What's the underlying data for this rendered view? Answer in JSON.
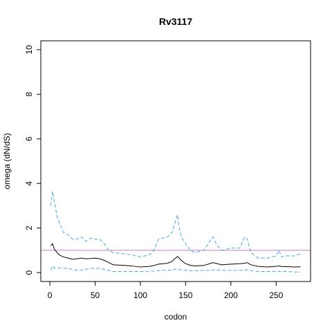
{
  "chart_data": {
    "type": "line",
    "title": "Rv3117",
    "xlabel": "codon",
    "ylabel": "omega (dN/dS)",
    "x": [
      1,
      3,
      5,
      8,
      10,
      15,
      20,
      25,
      30,
      35,
      40,
      45,
      50,
      55,
      60,
      65,
      70,
      80,
      90,
      100,
      110,
      115,
      120,
      125,
      130,
      135,
      138,
      141,
      143,
      145,
      150,
      155,
      160,
      170,
      175,
      180,
      185,
      190,
      200,
      210,
      215,
      218,
      222,
      230,
      240,
      250,
      253,
      256,
      260,
      270,
      277
    ],
    "series": [
      {
        "color": "#000000",
        "dash": false,
        "values": [
          1.2,
          1.3,
          1.05,
          0.9,
          0.8,
          0.7,
          0.65,
          0.6,
          0.62,
          0.65,
          0.62,
          0.63,
          0.65,
          0.62,
          0.55,
          0.45,
          0.35,
          0.33,
          0.3,
          0.25,
          0.28,
          0.32,
          0.38,
          0.4,
          0.42,
          0.5,
          0.62,
          0.72,
          0.65,
          0.55,
          0.4,
          0.33,
          0.3,
          0.32,
          0.38,
          0.45,
          0.4,
          0.35,
          0.38,
          0.4,
          0.42,
          0.45,
          0.35,
          0.28,
          0.25,
          0.28,
          0.3,
          0.27,
          0.27,
          0.25,
          0.26
        ]
      },
      {
        "color": "#3fa9dc",
        "dash": true,
        "values": [
          3.0,
          3.65,
          3.2,
          2.5,
          2.3,
          1.8,
          1.7,
          1.5,
          1.5,
          1.6,
          1.4,
          1.55,
          1.5,
          1.5,
          1.3,
          1.0,
          0.9,
          0.85,
          0.8,
          0.7,
          0.8,
          1.0,
          1.5,
          1.55,
          1.6,
          1.8,
          2.2,
          2.6,
          2.0,
          1.6,
          1.3,
          1.0,
          0.9,
          1.0,
          1.3,
          1.6,
          1.2,
          1.0,
          1.1,
          1.1,
          1.6,
          1.5,
          0.9,
          0.65,
          0.65,
          0.75,
          1.0,
          0.7,
          0.75,
          0.75,
          0.85
        ]
      },
      {
        "color": "#3fa9dc",
        "dash": true,
        "values": [
          0.1,
          0.3,
          0.2,
          0.2,
          0.2,
          0.2,
          0.18,
          0.15,
          0.1,
          0.12,
          0.15,
          0.18,
          0.2,
          0.18,
          0.15,
          0.1,
          0.05,
          0.05,
          0.05,
          0.05,
          0.06,
          0.07,
          0.08,
          0.1,
          0.1,
          0.12,
          0.15,
          0.18,
          0.15,
          0.12,
          0.1,
          0.08,
          0.08,
          0.1,
          0.1,
          0.12,
          0.12,
          0.1,
          0.1,
          0.1,
          0.12,
          0.12,
          0.08,
          0.05,
          0.05,
          0.05,
          0.06,
          0.05,
          0.05,
          0.03,
          0.02
        ]
      }
    ],
    "reference_line": {
      "value": 1,
      "color": "#c77cc7"
    },
    "xlim": [
      -10,
      288
    ],
    "ylim": [
      -0.4,
      10.4
    ],
    "xticks": [
      0,
      50,
      100,
      150,
      200,
      250
    ],
    "yticks": [
      0,
      2,
      4,
      6,
      8,
      10
    ]
  }
}
